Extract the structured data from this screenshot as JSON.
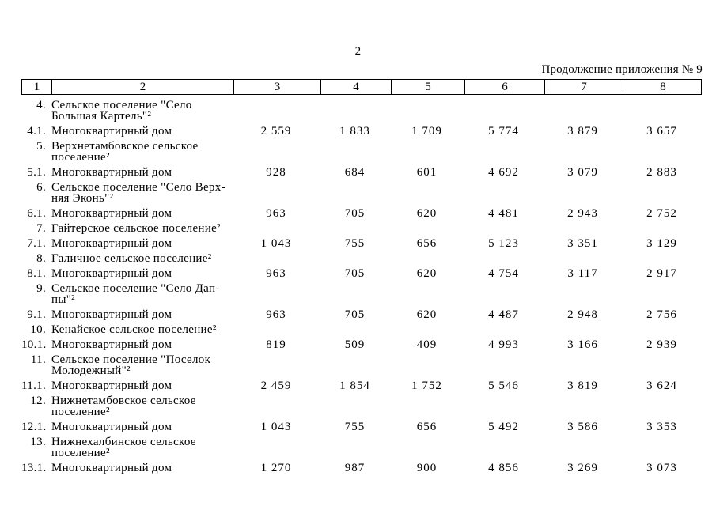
{
  "page": {
    "number": "2",
    "continuation_note": "Продолжение приложения № 9"
  },
  "table": {
    "header_columns": [
      "1",
      "2",
      "3",
      "4",
      "5",
      "6",
      "7",
      "8"
    ],
    "rows": [
      {
        "num": "4.",
        "name": "Сельское поселение \"Село\nБольшая Картель\"²",
        "values": [
          "",
          "",
          "",
          "",
          "",
          ""
        ]
      },
      {
        "num": "4.1.",
        "name": "Многоквартирный дом",
        "values": [
          "2 559",
          "1 833",
          "1 709",
          "5 774",
          "3 879",
          "3 657"
        ]
      },
      {
        "num": "5.",
        "name": "Верхнетамбовское сельское\nпоселение²",
        "values": [
          "",
          "",
          "",
          "",
          "",
          ""
        ]
      },
      {
        "num": "5.1.",
        "name": "Многоквартирный дом",
        "values": [
          "928",
          "684",
          "601",
          "4 692",
          "3 079",
          "2 883"
        ]
      },
      {
        "num": "6.",
        "name": "Сельское поселение \"Село Верх-\nняя Эконь\"²",
        "values": [
          "",
          "",
          "",
          "",
          "",
          ""
        ]
      },
      {
        "num": "6.1.",
        "name": "Многоквартирный дом",
        "values": [
          "963",
          "705",
          "620",
          "4 481",
          "2 943",
          "2 752"
        ]
      },
      {
        "num": "7.",
        "name": "Гайтерское сельское поселение²",
        "values": [
          "",
          "",
          "",
          "",
          "",
          ""
        ]
      },
      {
        "num": "7.1.",
        "name": "Многоквартирный дом",
        "values": [
          "1 043",
          "755",
          "656",
          "5 123",
          "3 351",
          "3 129"
        ]
      },
      {
        "num": "8.",
        "name": "Галичное сельское поселение²",
        "values": [
          "",
          "",
          "",
          "",
          "",
          ""
        ]
      },
      {
        "num": "8.1.",
        "name": "Многоквартирный дом",
        "values": [
          "963",
          "705",
          "620",
          "4 754",
          "3 117",
          "2 917"
        ]
      },
      {
        "num": "9.",
        "name": "Сельское поселение \"Село Дап-\nпы\"²",
        "values": [
          "",
          "",
          "",
          "",
          "",
          ""
        ]
      },
      {
        "num": "9.1.",
        "name": "Многоквартирный дом",
        "values": [
          "963",
          "705",
          "620",
          "4 487",
          "2 948",
          "2 756"
        ]
      },
      {
        "num": "10.",
        "name": "Кенайское сельское поселение²",
        "values": [
          "",
          "",
          "",
          "",
          "",
          ""
        ]
      },
      {
        "num": "10.1.",
        "name": "Многоквартирный дом",
        "values": [
          "819",
          "509",
          "409",
          "4 993",
          "3 166",
          "2 939"
        ]
      },
      {
        "num": "11.",
        "name": "Сельское поселение \"Поселок\nМолодежный\"²",
        "values": [
          "",
          "",
          "",
          "",
          "",
          ""
        ]
      },
      {
        "num": "11.1.",
        "name": "Многоквартирный дом",
        "values": [
          "2 459",
          "1 854",
          "1 752",
          "5 546",
          "3 819",
          "3 624"
        ]
      },
      {
        "num": "12.",
        "name": "Нижнетамбовское сельское\nпоселение²",
        "values": [
          "",
          "",
          "",
          "",
          "",
          ""
        ]
      },
      {
        "num": "12.1.",
        "name": "Многоквартирный дом",
        "values": [
          "1 043",
          "755",
          "656",
          "5 492",
          "3 586",
          "3 353"
        ]
      },
      {
        "num": "13.",
        "name": "Нижнехалбинское сельское\nпоселение²",
        "values": [
          "",
          "",
          "",
          "",
          "",
          ""
        ]
      },
      {
        "num": "13.1.",
        "name": "Многоквартирный дом",
        "values": [
          "1 270",
          "987",
          "900",
          "4 856",
          "3 269",
          "3 073"
        ]
      }
    ]
  }
}
